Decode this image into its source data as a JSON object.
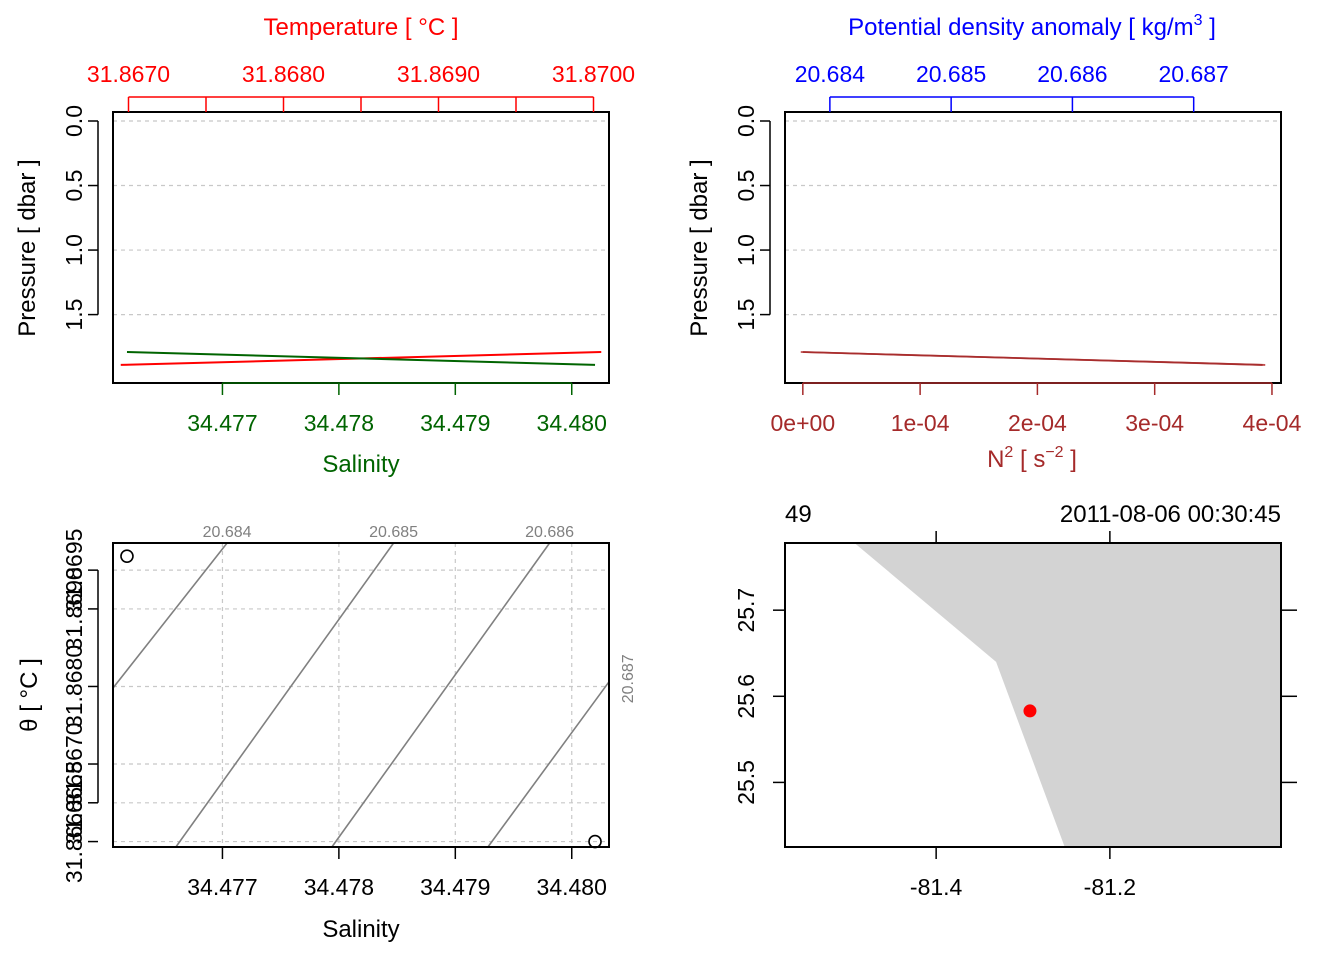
{
  "colors": {
    "temperature": "#ff0000",
    "salinity": "#006400",
    "density": "#0000ff",
    "n2": "#a52a2a",
    "density_line": "#b22222",
    "contour": "#808080",
    "grid": "#c8c8c8",
    "land": "#d3d3d3",
    "station": "#ff0000"
  },
  "chart_data": [
    {
      "type": "line",
      "panel": "profile-TS",
      "top_axis": {
        "label": "Temperature [ °C ]",
        "ticks": [
          31.867,
          31.868,
          31.869,
          31.87
        ],
        "tick_labels": [
          "31.8670",
          "31.8680",
          "31.8690",
          "31.8700"
        ],
        "minor_ticks": [
          31.8675,
          31.8685,
          31.8695
        ],
        "range": [
          31.8669,
          31.8701
        ]
      },
      "bottom_axis": {
        "label": "Salinity",
        "ticks": [
          34.477,
          34.478,
          34.479,
          34.48
        ],
        "tick_labels": [
          "34.477",
          "34.478",
          "34.479",
          "34.480"
        ],
        "range": [
          34.47606,
          34.48032
        ]
      },
      "y_axis": {
        "label": "Pressure [ dbar ]",
        "ticks": [
          0,
          0.5,
          1,
          1.5
        ],
        "tick_labels": [
          "0.0",
          "0.5",
          "1.0",
          "1.5"
        ],
        "range": [
          0,
          2.03
        ],
        "reversed": true
      },
      "grid": true,
      "series": [
        {
          "variable": "temperature",
          "x": [
            31.86695,
            31.87005
          ],
          "y": [
            1.89,
            1.79
          ]
        },
        {
          "variable": "salinity",
          "x": [
            34.47618,
            34.4802
          ],
          "y": [
            1.79,
            1.89
          ]
        }
      ]
    },
    {
      "type": "line",
      "panel": "profile-density-N2",
      "top_axis": {
        "label": "Potential density anomaly [ kg/m³ ]",
        "ticks": [
          20.684,
          20.685,
          20.686,
          20.687
        ],
        "tick_labels": [
          "20.684",
          "20.685",
          "20.686",
          "20.687"
        ],
        "range": [
          20.68363,
          20.68772
        ]
      },
      "bottom_axis": {
        "label": "N² [ s⁻² ]",
        "ticks": [
          0,
          0.0001,
          0.0002,
          0.0003,
          0.0004
        ],
        "tick_labels": [
          "0e+00",
          "1e-04",
          "2e-04",
          "3e-04",
          "4e-04"
        ],
        "range": [
          -1.52e-05,
          0.0004077
        ]
      },
      "y_axis": {
        "label": "Pressure [ dbar ]",
        "ticks": [
          0,
          0.5,
          1,
          1.5
        ],
        "tick_labels": [
          "0.0",
          "0.5",
          "1.0",
          "1.5"
        ],
        "range": [
          0,
          2.03
        ],
        "reversed": true
      },
      "grid": true,
      "series": [
        {
          "variable": "density",
          "x": [
            20.68376,
            20.68759
          ],
          "y": [
            1.79,
            1.89
          ]
        },
        {
          "variable": "N2",
          "x": [
            0,
            0.000392
          ],
          "y": [
            1.79,
            1.89
          ]
        }
      ]
    },
    {
      "type": "scatter",
      "panel": "TS-diagram",
      "x_axis": {
        "label": "Salinity",
        "ticks": [
          34.477,
          34.478,
          34.479,
          34.48
        ],
        "tick_labels": [
          "34.477",
          "34.478",
          "34.479",
          "34.480"
        ],
        "range": [
          34.47606,
          34.48032
        ]
      },
      "y_axis": {
        "label": "θ [ °C ]",
        "ticks": [
          31.8665,
          31.868,
          31.8695
        ],
        "tick_labels": [
          "31.8665",
          "31.8680",
          "31.8695"
        ],
        "minor_ticks": [
          31.866,
          31.867,
          31.869
        ],
        "minor_tick_labels": [
          "31.8660",
          "31.8670",
          "31.8690"
        ],
        "range": [
          31.86593,
          31.86985
        ]
      },
      "grid": true,
      "points": [
        {
          "x": 34.47618,
          "y": 31.86968
        },
        {
          "x": 34.4802,
          "y": 31.866
        }
      ],
      "density_contours": [
        {
          "label": "20.684",
          "x": [
            34.47606,
            34.47704
          ],
          "y": [
            31.86798,
            31.86985
          ]
        },
        {
          "label": "20.685",
          "x": [
            34.4766,
            34.47847
          ],
          "y": [
            31.86593,
            31.86985
          ]
        },
        {
          "label": "20.686",
          "x": [
            34.47794,
            34.47981
          ],
          "y": [
            31.86593,
            31.86985
          ]
        },
        {
          "label": "20.687",
          "x": [
            34.47928,
            34.48032
          ],
          "y": [
            31.86593,
            31.86806
          ]
        }
      ]
    },
    {
      "type": "scatter",
      "panel": "map",
      "top_left_label": "49",
      "top_right_label": "2011-08-06 00:30:45",
      "x_axis": {
        "ticks": [
          -81.4,
          -81.2
        ],
        "tick_labels": [
          "-81.4",
          "-81.2"
        ],
        "range": [
          -81.574,
          -81.003
        ]
      },
      "y_axis": {
        "ticks": [
          25.5,
          25.6,
          25.7
        ],
        "tick_labels": [
          "25.5",
          "25.6",
          "25.7"
        ],
        "range": [
          25.425,
          25.778
        ]
      },
      "land_polygon": [
        [
          -81.494,
          25.778
        ],
        [
          -81.003,
          25.778
        ],
        [
          -81.003,
          25.425
        ],
        [
          -81.252,
          25.425
        ],
        [
          -81.331,
          25.64
        ]
      ],
      "station": {
        "lon": -81.292,
        "lat": 25.583
      }
    }
  ]
}
